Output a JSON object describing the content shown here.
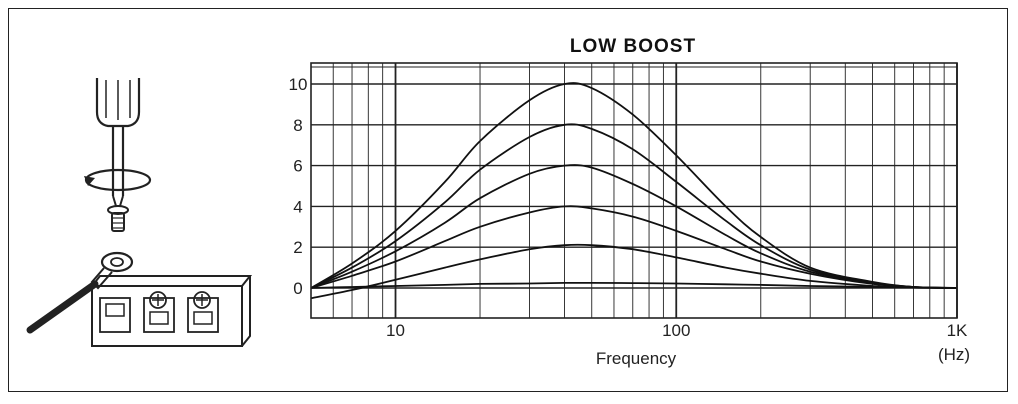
{
  "chart_data": {
    "type": "line",
    "title": "LOW BOOST",
    "xlabel": "Frequency",
    "xunit": "(Hz)",
    "xscale": "log",
    "xlim": [
      5,
      1000
    ],
    "ylim": [
      0,
      10
    ],
    "grid": true,
    "x_tick_labels": [
      {
        "value": 10,
        "label": "10"
      },
      {
        "value": 100,
        "label": "100"
      },
      {
        "value": 1000,
        "label": "1K"
      }
    ],
    "y_tick_labels": [
      {
        "value": 10,
        "label": "10"
      },
      {
        "value": 8,
        "label": "8"
      },
      {
        "value": 6,
        "label": "6"
      },
      {
        "value": 4,
        "label": "4"
      },
      {
        "value": 2,
        "label": "2"
      },
      {
        "value": 0,
        "label": "0"
      }
    ],
    "series": [
      {
        "x": [
          5,
          7,
          10,
          15,
          20,
          30,
          40,
          50,
          70,
          100,
          150,
          200,
          300,
          500,
          700,
          1000
        ],
        "values": [
          0.0,
          0.05,
          0.1,
          0.15,
          0.2,
          0.22,
          0.25,
          0.25,
          0.24,
          0.22,
          0.18,
          0.15,
          0.1,
          0.05,
          0.02,
          0.0
        ]
      },
      {
        "x": [
          5,
          7,
          10,
          15,
          20,
          30,
          40,
          50,
          70,
          100,
          150,
          200,
          300,
          500,
          700,
          1000
        ],
        "values": [
          -0.5,
          -0.1,
          0.4,
          1.0,
          1.4,
          1.9,
          2.1,
          2.1,
          1.9,
          1.5,
          1.0,
          0.7,
          0.35,
          0.1,
          0.02,
          0.0
        ]
      },
      {
        "x": [
          5,
          7,
          10,
          15,
          20,
          30,
          40,
          50,
          70,
          100,
          150,
          200,
          300,
          500,
          700,
          1000
        ],
        "values": [
          0.0,
          0.6,
          1.3,
          2.3,
          3.0,
          3.7,
          4.0,
          3.9,
          3.5,
          2.8,
          1.9,
          1.3,
          0.7,
          0.2,
          0.05,
          0.0
        ]
      },
      {
        "x": [
          5,
          7,
          10,
          15,
          20,
          30,
          40,
          50,
          70,
          100,
          150,
          200,
          300,
          500,
          700,
          1000
        ],
        "values": [
          0.0,
          0.8,
          1.8,
          3.2,
          4.4,
          5.6,
          6.0,
          5.9,
          5.1,
          4.0,
          2.6,
          1.7,
          0.8,
          0.25,
          0.05,
          0.0
        ]
      },
      {
        "x": [
          5,
          7,
          10,
          15,
          20,
          30,
          40,
          50,
          70,
          100,
          150,
          200,
          300,
          500,
          700,
          1000
        ],
        "values": [
          0.0,
          1.0,
          2.3,
          4.2,
          5.8,
          7.4,
          8.0,
          7.8,
          6.8,
          5.2,
          3.3,
          2.1,
          0.9,
          0.25,
          0.05,
          0.0
        ]
      },
      {
        "x": [
          5,
          7,
          10,
          15,
          20,
          30,
          40,
          50,
          70,
          100,
          150,
          200,
          300,
          500,
          700,
          1000
        ],
        "values": [
          0.0,
          1.2,
          2.8,
          5.2,
          7.2,
          9.2,
          10.0,
          9.8,
          8.5,
          6.5,
          4.0,
          2.5,
          1.0,
          0.3,
          0.05,
          0.0
        ]
      }
    ]
  },
  "illustration": {
    "name": "screwdriver-terminal-illustration"
  }
}
